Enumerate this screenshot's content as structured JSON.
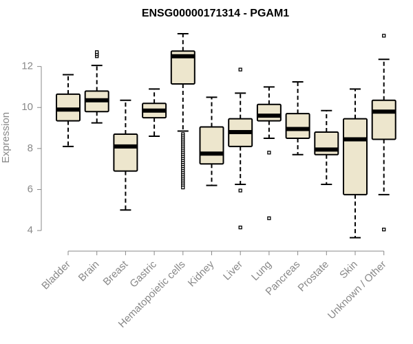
{
  "chart_data": {
    "type": "boxplot",
    "title": "ENSG00000171314 - PGAM1",
    "xlabel": "",
    "ylabel": "Expression",
    "ylim": [
      3.6,
      13.9
    ],
    "yticks": [
      4,
      6,
      8,
      10,
      12
    ],
    "grid": false,
    "colors": {
      "box_fill": "#ede6cd",
      "stroke": "#000000",
      "axis": "#888888"
    },
    "categories": [
      "Bladder",
      "Brain",
      "Breast",
      "Gastric",
      "Hematopoietic cells",
      "Kidney",
      "Liver",
      "Lung",
      "Pancreas",
      "Prostate",
      "Skin",
      "Unknown / Other"
    ],
    "boxes": [
      {
        "name": "Bladder",
        "q1": 9.35,
        "median": 9.9,
        "q3": 10.65,
        "whisker_low": 8.1,
        "whisker_high": 11.6,
        "outliers": []
      },
      {
        "name": "Brain",
        "q1": 9.8,
        "median": 10.35,
        "q3": 10.8,
        "whisker_low": 9.25,
        "whisker_high": 12.05,
        "outliers": [
          12.5,
          12.6,
          12.7
        ]
      },
      {
        "name": "Breast",
        "q1": 6.9,
        "median": 8.1,
        "q3": 8.7,
        "whisker_low": 5.0,
        "whisker_high": 10.35,
        "outliers": []
      },
      {
        "name": "Gastric",
        "q1": 9.5,
        "median": 9.85,
        "q3": 10.2,
        "whisker_low": 8.6,
        "whisker_high": 10.9,
        "outliers": []
      },
      {
        "name": "Hematopoietic cells",
        "q1": 11.15,
        "median": 12.5,
        "q3": 12.75,
        "whisker_low": 8.85,
        "whisker_high": 13.6,
        "outliers": [
          8.7,
          8.6,
          8.5,
          8.4,
          8.3,
          8.2,
          8.1,
          8.0,
          7.9,
          7.8,
          7.7,
          7.6,
          7.5,
          7.4,
          7.3,
          7.2,
          7.1,
          7.0,
          6.9,
          6.8,
          6.7,
          6.6,
          6.5,
          6.4,
          6.3,
          6.2,
          6.1
        ]
      },
      {
        "name": "Kidney",
        "q1": 7.25,
        "median": 7.75,
        "q3": 9.05,
        "whisker_low": 6.2,
        "whisker_high": 10.5,
        "outliers": []
      },
      {
        "name": "Liver",
        "q1": 8.1,
        "median": 8.8,
        "q3": 9.45,
        "whisker_low": 6.25,
        "whisker_high": 10.7,
        "outliers": [
          11.85,
          5.95,
          4.15
        ]
      },
      {
        "name": "Lung",
        "q1": 9.35,
        "median": 9.6,
        "q3": 10.15,
        "whisker_low": 8.5,
        "whisker_high": 11.0,
        "outliers": [
          7.8,
          4.6
        ]
      },
      {
        "name": "Pancreas",
        "q1": 8.5,
        "median": 8.95,
        "q3": 9.7,
        "whisker_low": 7.7,
        "whisker_high": 11.25,
        "outliers": []
      },
      {
        "name": "Prostate",
        "q1": 7.7,
        "median": 7.95,
        "q3": 8.8,
        "whisker_low": 6.25,
        "whisker_high": 9.85,
        "outliers": []
      },
      {
        "name": "Skin",
        "q1": 5.75,
        "median": 8.45,
        "q3": 9.45,
        "whisker_low": 3.65,
        "whisker_high": 10.9,
        "outliers": []
      },
      {
        "name": "Unknown / Other",
        "q1": 8.45,
        "median": 9.8,
        "q3": 10.35,
        "whisker_low": 5.75,
        "whisker_high": 12.35,
        "outliers": [
          13.5,
          4.05
        ]
      }
    ]
  }
}
